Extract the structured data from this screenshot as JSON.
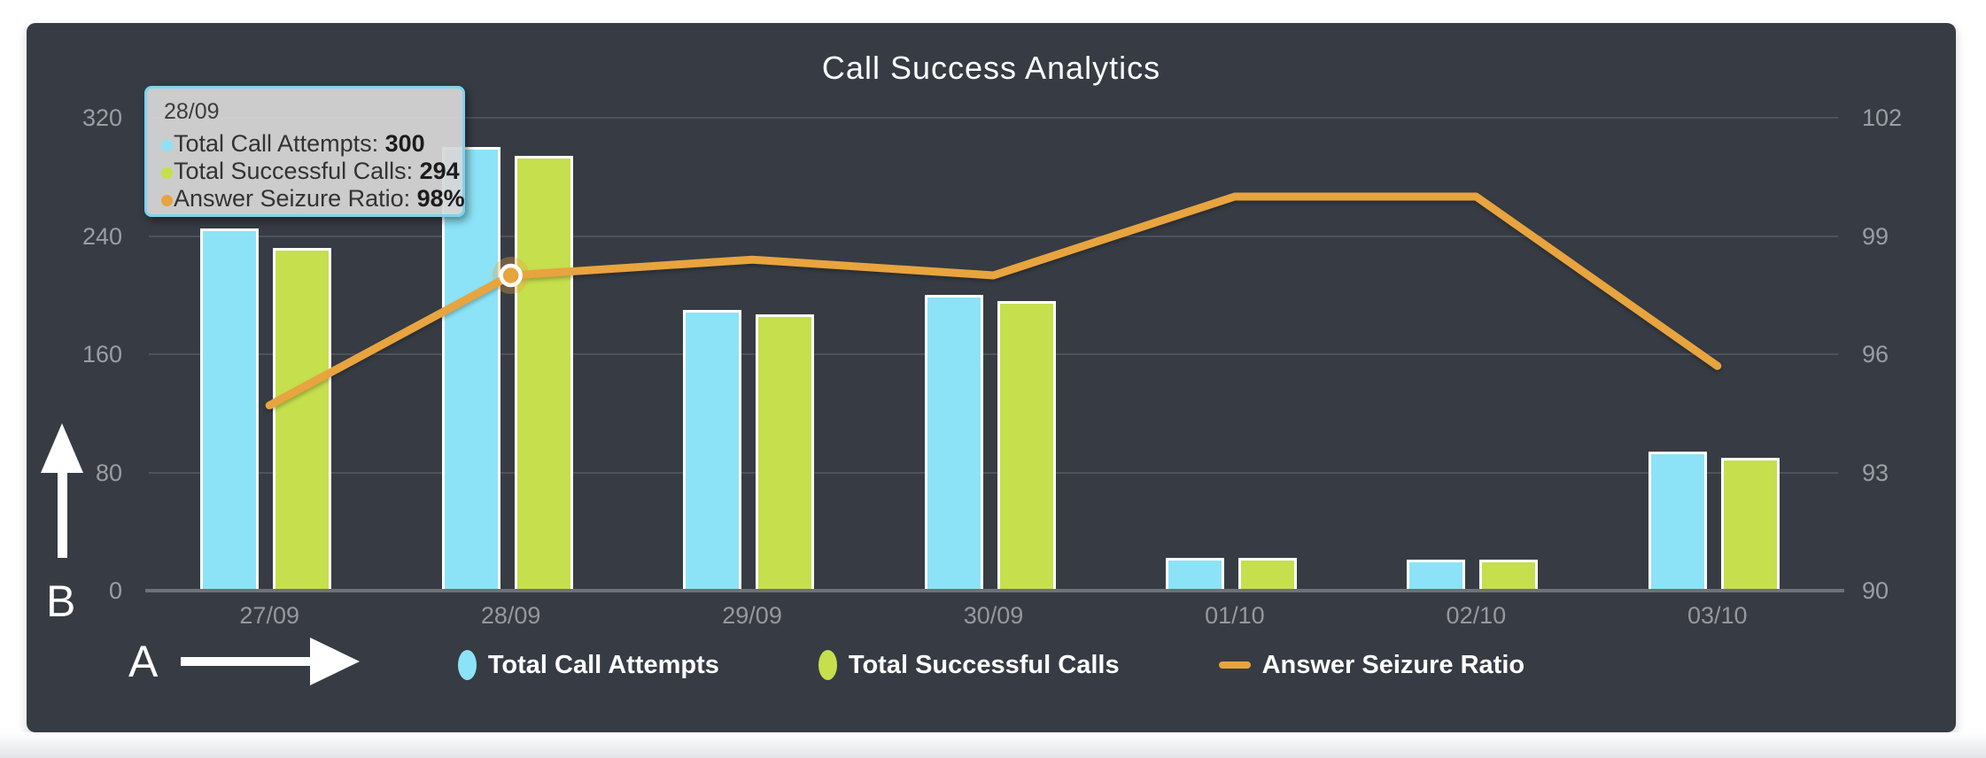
{
  "page": {
    "background": "#ffffff"
  },
  "panel": {
    "background": "#373C44"
  },
  "chart_data": {
    "type": "bar",
    "title": "Call Success Analytics",
    "categories": [
      "27/09",
      "28/09",
      "29/09",
      "30/09",
      "01/10",
      "02/10",
      "03/10"
    ],
    "series": [
      {
        "name": "Total Call Attempts",
        "kind": "bar",
        "axis": "left",
        "color": "#8CE3F7",
        "values": [
          245,
          300,
          190,
          200,
          22,
          21,
          94
        ]
      },
      {
        "name": "Total Successful Calls",
        "kind": "bar",
        "axis": "left",
        "color": "#C6DF4D",
        "values": [
          232,
          294,
          187,
          196,
          22,
          21,
          90
        ]
      },
      {
        "name": "Answer Seizure Ratio",
        "kind": "line",
        "axis": "right",
        "color": "#E8A43E",
        "unit": "%",
        "values": [
          94.7,
          98,
          98.4,
          98,
          100,
          100,
          95.7
        ],
        "highlight_index": 1
      }
    ],
    "left_axis": {
      "min": 0,
      "max": 320,
      "ticks": [
        0,
        80,
        160,
        240,
        320
      ]
    },
    "right_axis": {
      "min": 90,
      "max": 102,
      "ticks": [
        90,
        93,
        96,
        99,
        102
      ]
    },
    "grid": true,
    "legend_position": "bottom"
  },
  "tooltip": {
    "date": "28/09",
    "rows": [
      {
        "label": "Total Call Attempts",
        "value": "300",
        "color": "#8CE3F7"
      },
      {
        "label": "Total Successful Calls",
        "value": "294",
        "color": "#C6DF4D"
      },
      {
        "label": "Answer Seizure Ratio",
        "value": "98%",
        "color": "#E8A43E"
      }
    ]
  },
  "annotations": {
    "a_label": "A",
    "b_label": "B"
  }
}
